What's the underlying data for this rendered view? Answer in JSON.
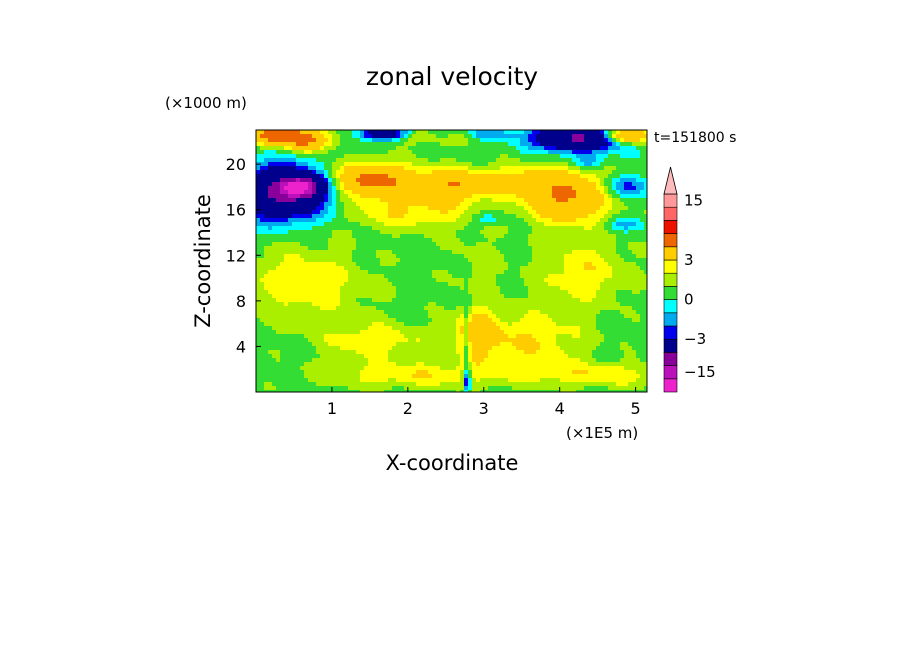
{
  "chart_data": {
    "type": "heatmap",
    "title": "zonal velocity",
    "xlabel": "X-coordinate",
    "ylabel": "Z-coordinate",
    "x_unit": "(×1E5 m)",
    "y_unit": "(×1000 m)",
    "time_label": "t=151800 s",
    "xlim": [
      0,
      5.15
    ],
    "ylim": [
      0,
      23
    ],
    "x_ticks": [
      1,
      2,
      3,
      4,
      5
    ],
    "y_ticks": [
      4,
      8,
      12,
      16,
      20
    ],
    "colorbar": {
      "levels": [
        -18,
        -15,
        -12,
        -9,
        -3,
        -2,
        -1,
        0,
        1,
        2,
        3,
        6,
        9,
        12,
        15,
        18
      ],
      "colors": [
        "#ee22cc",
        "#bb11bb",
        "#880099",
        "#00008c",
        "#0000ee",
        "#00aaee",
        "#00ffff",
        "#33dd33",
        "#aaee00",
        "#ffff00",
        "#ffcc00",
        "#ee6600",
        "#ee1100",
        "#ff6666",
        "#ff9999",
        "#ffbbbb"
      ],
      "tick_labels": [
        "15",
        "3",
        "0",
        "−3",
        "−15"
      ],
      "tick_values": [
        15,
        3,
        0,
        -3,
        -15
      ]
    },
    "field": {
      "background_level": 0.5,
      "blobs": [
        {
          "x": 0.3,
          "z": 22.5,
          "v": 7.5,
          "rx": 0.4,
          "rz": 0.8
        },
        {
          "x": 0.7,
          "z": 22.0,
          "v": 4.5,
          "rx": 0.3,
          "rz": 0.9
        },
        {
          "x": 1.7,
          "z": 22.7,
          "v": -6,
          "rx": 0.35,
          "rz": 0.6
        },
        {
          "x": 2.3,
          "z": 22.5,
          "v": 2.5,
          "rx": 0.6,
          "rz": 0.7
        },
        {
          "x": 2.45,
          "z": 22.7,
          "v": -2.5,
          "rx": 0.2,
          "rz": 0.5
        },
        {
          "x": 3.05,
          "z": 22.6,
          "v": -2.5,
          "rx": 0.35,
          "rz": 0.5
        },
        {
          "x": 4.25,
          "z": 22.3,
          "v": -10,
          "rx": 0.55,
          "rz": 1.1
        },
        {
          "x": 4.85,
          "z": 22.5,
          "v": 7,
          "rx": 0.35,
          "rz": 0.7
        },
        {
          "x": 0.35,
          "z": 17.5,
          "v": -10,
          "rx": 0.55,
          "rz": 2.2
        },
        {
          "x": 0.6,
          "z": 18.0,
          "v": -12,
          "rx": 0.25,
          "rz": 0.8
        },
        {
          "x": 1.55,
          "z": 18.6,
          "v": 6.5,
          "rx": 0.55,
          "rz": 1.5
        },
        {
          "x": 2.6,
          "z": 18.2,
          "v": 5,
          "rx": 0.45,
          "rz": 1.4
        },
        {
          "x": 2.05,
          "z": 15.8,
          "v": 2.5,
          "rx": 0.8,
          "rz": 1.6
        },
        {
          "x": 4.1,
          "z": 17.2,
          "v": 6,
          "rx": 0.55,
          "rz": 2.2
        },
        {
          "x": 3.4,
          "z": 18.5,
          "v": 3,
          "rx": 0.45,
          "rz": 1.2
        },
        {
          "x": 4.85,
          "z": 18.0,
          "v": -3,
          "rx": 0.35,
          "rz": 1.0
        },
        {
          "x": 4.4,
          "z": 20.2,
          "v": -2.5,
          "rx": 0.2,
          "rz": 0.6
        },
        {
          "x": 3.05,
          "z": 15.2,
          "v": -2,
          "rx": 0.2,
          "rz": 0.6
        },
        {
          "x": 4.85,
          "z": 14.7,
          "v": -2,
          "rx": 0.25,
          "rz": 0.6
        },
        {
          "x": 0.6,
          "z": 9.5,
          "v": 2.2,
          "rx": 0.9,
          "rz": 3.2
        },
        {
          "x": 1.55,
          "z": 4.5,
          "v": 2.2,
          "rx": 0.7,
          "rz": 1.6
        },
        {
          "x": 3.55,
          "z": 4.5,
          "v": 2.5,
          "rx": 0.8,
          "rz": 2.6
        },
        {
          "x": 4.3,
          "z": 10.5,
          "v": 2.3,
          "rx": 0.6,
          "rz": 2.8
        },
        {
          "x": 2.9,
          "z": 5.2,
          "v": 3.5,
          "rx": 0.25,
          "rz": 2.0
        },
        {
          "x": 2.1,
          "z": 1.5,
          "v": 2.2,
          "rx": 1.3,
          "rz": 1.2
        },
        {
          "x": 4.6,
          "z": 1.5,
          "v": 2.2,
          "rx": 0.9,
          "rz": 1.0
        },
        {
          "x": 2.9,
          "z": 11.0,
          "v": 0.8,
          "rx": 0.4,
          "rz": 4.0
        },
        {
          "x": 2.78,
          "z": 1.0,
          "v": -4.5,
          "rx": 0.05,
          "rz": 1.0
        },
        {
          "x": 2.78,
          "z": 5.0,
          "v": -3,
          "rx": 0.04,
          "rz": 3.0
        }
      ]
    }
  }
}
